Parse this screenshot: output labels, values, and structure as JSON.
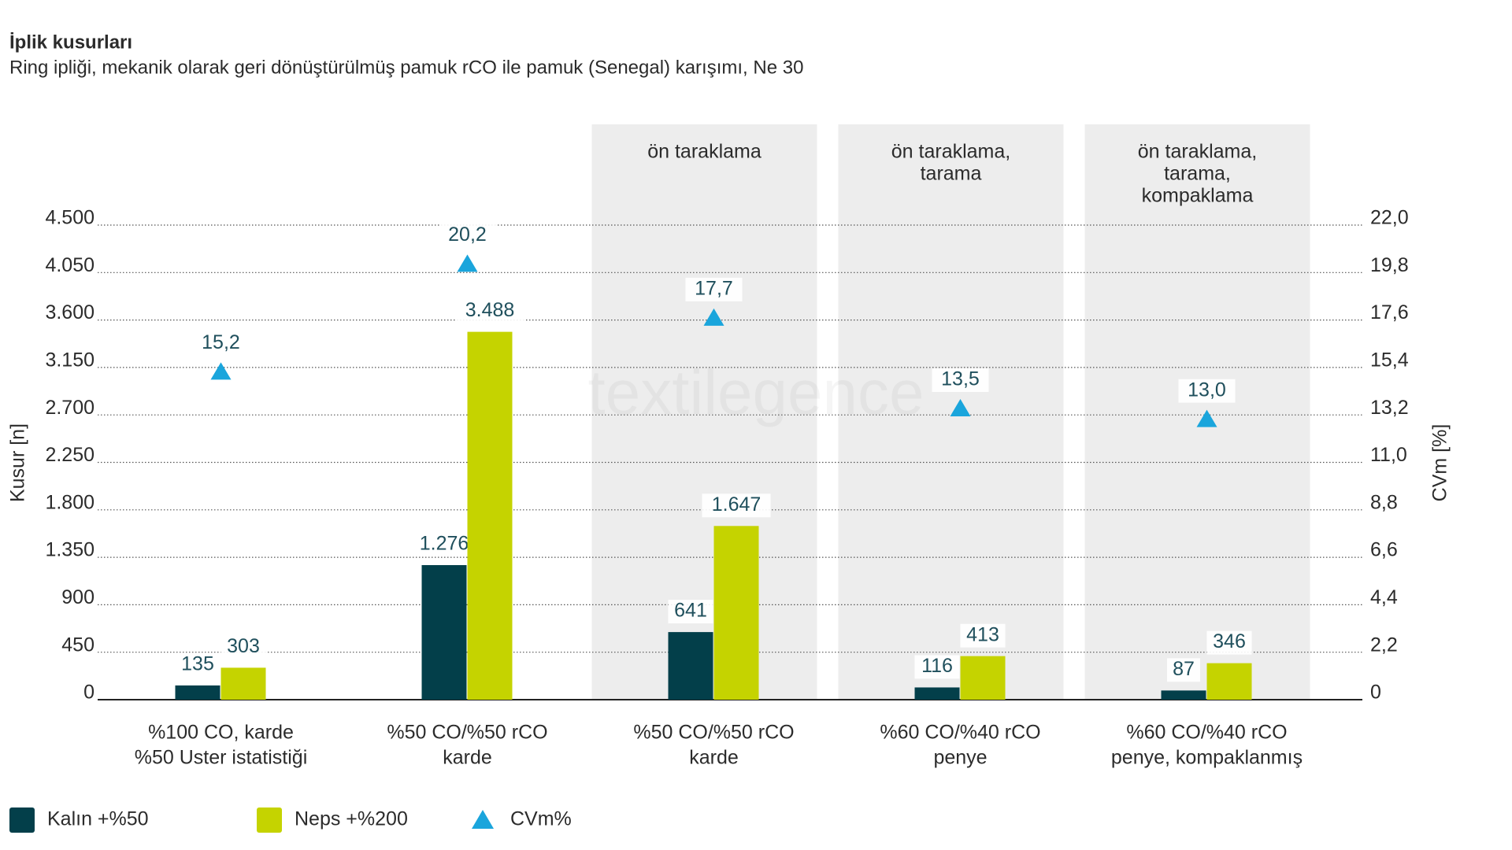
{
  "chart_data": {
    "type": "bar",
    "title": "İplik kusurları",
    "subtitle": "Ring ipliği, mekanik olarak geri dönüştürülmüş pamuk rCO ile pamuk (Senegal) karışımı, Ne 30",
    "watermark": "textilegence",
    "ylabel": "Kusur [n]",
    "y2label": "CVm [%]",
    "categories": [
      [
        "%100 CO, karde",
        "%50 Uster istatistiği"
      ],
      [
        "%50 CO/%50 rCO",
        "karde"
      ],
      [
        "%50 CO/%50 rCO",
        "karde"
      ],
      [
        "%60 CO/%40 rCO",
        "penye"
      ],
      [
        "%60 CO/%40 rCO",
        "penye, kompaklanmış"
      ]
    ],
    "category_panels": [
      null,
      null,
      [
        "ön taraklama"
      ],
      [
        "ön taraklama,",
        "tarama"
      ],
      [
        "ön taraklama,",
        "tarama,",
        "kompaklama"
      ]
    ],
    "series": [
      {
        "name": "Kalın +%50",
        "color": "#033f4a",
        "values": [
          135,
          1276,
          641,
          116,
          87
        ],
        "value_labels": [
          "135",
          "1.276",
          "641",
          "116",
          "87"
        ]
      },
      {
        "name": "Neps +%200",
        "color": "#c5d300",
        "values": [
          303,
          3488,
          1647,
          413,
          346
        ],
        "value_labels": [
          "303",
          "3.488",
          "1.647",
          "413",
          "346"
        ]
      },
      {
        "name": "CVm%",
        "color": "#1aa5dc",
        "axis": "y2",
        "marker": "triangle",
        "values": [
          15.2,
          20.2,
          17.7,
          13.5,
          13.0
        ],
        "value_labels": [
          "15,2",
          "20,2",
          "17,7",
          "13,5",
          "13,0"
        ]
      }
    ],
    "ylim": [
      0,
      4500
    ],
    "yticks": [
      0,
      450,
      900,
      {
        "value": 1350,
        "label": "1.350"
      },
      {
        "value": 1800,
        "label": "1.800"
      },
      {
        "value": 2250,
        "label": "2.250"
      },
      {
        "value": 2700,
        "label": "2.700"
      },
      {
        "value": 3150,
        "label": "3.150"
      },
      {
        "value": 3600,
        "label": "3.600"
      },
      {
        "value": 4050,
        "label": "4.050"
      },
      {
        "value": 4500,
        "label": "4.500"
      }
    ],
    "y2lim": [
      0,
      22
    ],
    "y2ticks": [
      0,
      {
        "value": 2.2,
        "label": "2,2"
      },
      {
        "value": 4.4,
        "label": "4,4"
      },
      {
        "value": 6.6,
        "label": "6,6"
      },
      {
        "value": 8.8,
        "label": "8,8"
      },
      {
        "value": 11,
        "label": "11,0"
      },
      {
        "value": 13.2,
        "label": "13,2"
      },
      {
        "value": 15.4,
        "label": "15,4"
      },
      {
        "value": 17.6,
        "label": "17,6"
      },
      {
        "value": 19.8,
        "label": "19,8"
      },
      {
        "value": 22,
        "label": "22,0"
      }
    ],
    "grid": true
  }
}
